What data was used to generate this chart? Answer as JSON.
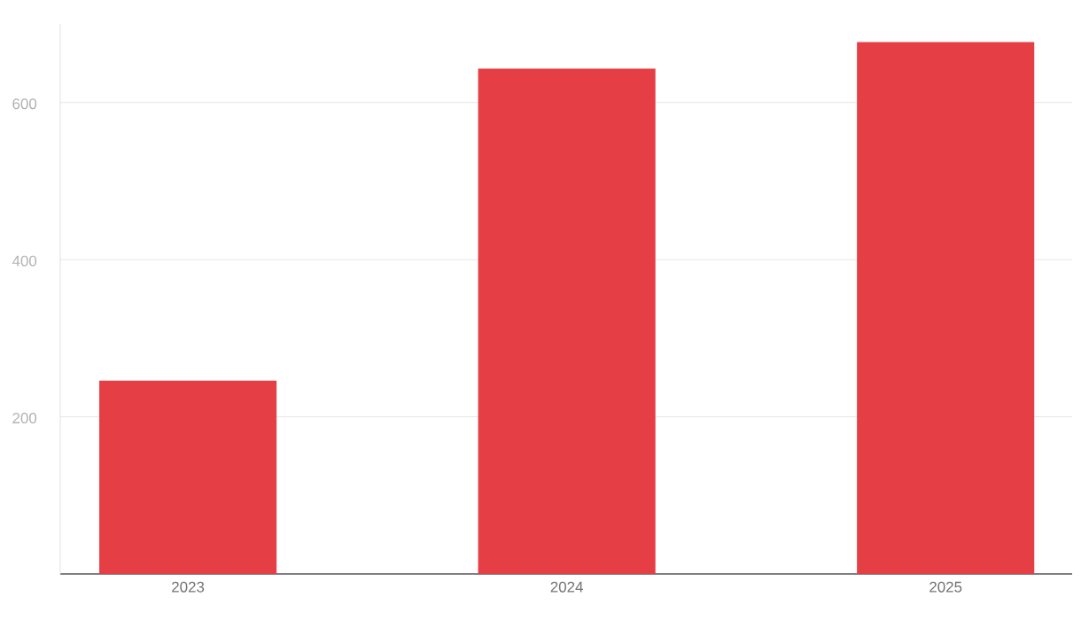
{
  "chart_data": {
    "type": "bar",
    "categories": [
      "2023",
      "2024",
      "2025"
    ],
    "values": [
      246,
      643,
      677
    ],
    "color": "#e53e45",
    "ylim": [
      0,
      700
    ],
    "yticks": [
      200,
      400,
      600
    ],
    "grid": "y"
  }
}
